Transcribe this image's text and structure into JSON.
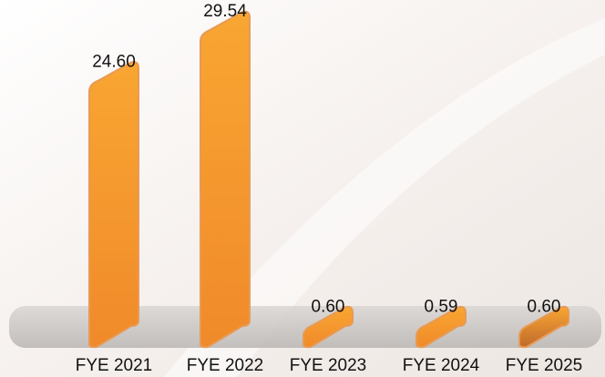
{
  "chart_data": {
    "type": "bar",
    "categories": [
      "FYE 2021",
      "FYE 2022",
      "FYE 2023",
      "FYE 2024",
      "FYE 2025"
    ],
    "values": [
      24.6,
      29.54,
      0.6,
      0.59,
      0.6
    ],
    "value_labels": [
      "24.60",
      "29.54",
      "0.60",
      "0.59",
      "0.60"
    ],
    "colors": [
      "#f08a2a",
      "#f08a2a",
      "#f08a2a",
      "#f08a2a",
      "#c06a2c"
    ]
  }
}
